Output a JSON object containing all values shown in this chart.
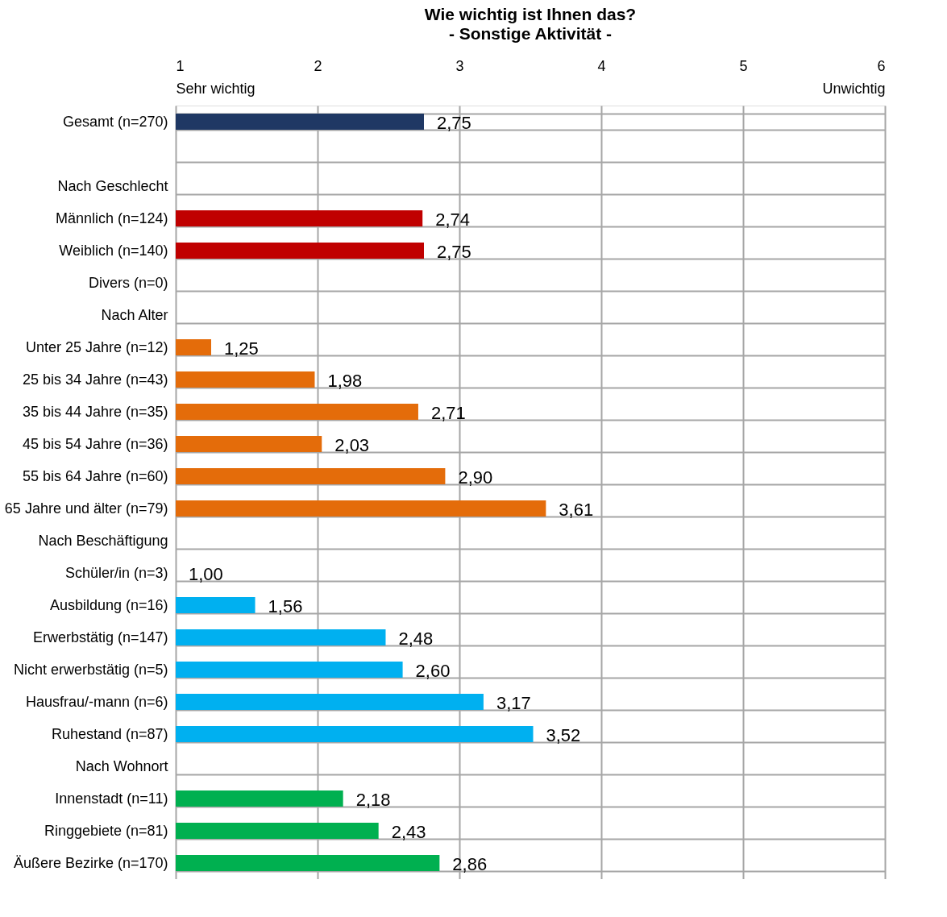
{
  "chart_data": {
    "type": "bar",
    "orientation": "horizontal",
    "title": "Wie wichtig ist Ihnen das?",
    "subtitle": "- Sonstige Aktivität -",
    "categories": [
      "Gesamt (n=270)",
      null,
      "Nach Geschlecht",
      "Männlich (n=124)",
      "Weiblich (n=140)",
      "Divers (n=0)",
      "Nach Alter",
      "Unter 25 Jahre (n=12)",
      "25 bis 34 Jahre (n=43)",
      "35 bis 44 Jahre (n=35)",
      "45 bis 54 Jahre (n=36)",
      "55 bis 64 Jahre (n=60)",
      "65 Jahre und älter (n=79)",
      "Nach Beschäftigung",
      "Schüler/in (n=3)",
      "Ausbildung  (n=16)",
      "Erwerbstätig (n=147)",
      "Nicht erwerbstätig (n=5)",
      "Hausfrau/-mann (n=6)",
      "Ruhestand (n=87)",
      "Nach Wohnort",
      "Innenstadt (n=11)",
      "Ringgebiete (n=81)",
      "Äußere Bezirke (n=170)"
    ],
    "values": [
      2.75,
      null,
      null,
      2.74,
      2.75,
      null,
      null,
      1.25,
      1.98,
      2.71,
      2.03,
      2.9,
      3.61,
      null,
      1.0,
      1.56,
      2.48,
      2.6,
      3.17,
      3.52,
      null,
      2.18,
      2.43,
      2.86
    ],
    "value_labels": [
      "2,75",
      null,
      null,
      "2,74",
      "2,75",
      null,
      null,
      "1,25",
      "1,98",
      "2,71",
      "2,03",
      "2,90",
      "3,61",
      null,
      "1,00",
      "1,56",
      "2,48",
      "2,60",
      "3,17",
      "3,52",
      null,
      "2,18",
      "2,43",
      "2,86"
    ],
    "colors": [
      "#1f3864",
      null,
      null,
      "#c00000",
      "#c00000",
      null,
      null,
      "#e46c0a",
      "#e46c0a",
      "#e46c0a",
      "#e46c0a",
      "#e46c0a",
      "#e46c0a",
      null,
      "#00b0f0",
      "#00b0f0",
      "#00b0f0",
      "#00b0f0",
      "#00b0f0",
      "#00b0f0",
      null,
      "#00b050",
      "#00b050",
      "#00b050"
    ],
    "xlim": [
      1,
      6
    ],
    "xticks": [
      {
        "value": 1,
        "label": "1\nSehr wichtig"
      },
      2,
      3,
      4,
      5,
      {
        "value": 6,
        "label": "6\nUnwichtig"
      }
    ],
    "grid": true
  }
}
